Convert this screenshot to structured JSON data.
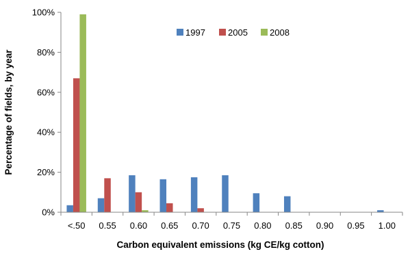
{
  "chart_data": {
    "type": "bar",
    "title": "",
    "xlabel": "Carbon equivalent emissions (kg CE/kg cotton)",
    "ylabel": "Percentage of fields, by year",
    "categories": [
      "<.50",
      "0.55",
      "0.60",
      "0.65",
      "0.70",
      "0.75",
      "0.80",
      "0.85",
      "0.90",
      "0.95",
      "1.00"
    ],
    "yticks": [
      "0%",
      "20%",
      "40%",
      "60%",
      "80%",
      "100%"
    ],
    "ylim": [
      0,
      100
    ],
    "y_unit": "percent",
    "grid": false,
    "legend_placement": "top-center",
    "series": [
      {
        "name": "1997",
        "color": "#4f81bd",
        "values": [
          3.5,
          7,
          18.5,
          16.5,
          17.5,
          18.5,
          9.5,
          8,
          0,
          0,
          1
        ]
      },
      {
        "name": "2005",
        "color": "#c0504d",
        "values": [
          67,
          17,
          10,
          4.5,
          2,
          0,
          0,
          0,
          0,
          0,
          0
        ]
      },
      {
        "name": "2008",
        "color": "#9bbb59",
        "values": [
          99,
          0,
          1,
          0,
          0,
          0,
          0,
          0,
          0,
          0,
          0
        ]
      }
    ]
  }
}
